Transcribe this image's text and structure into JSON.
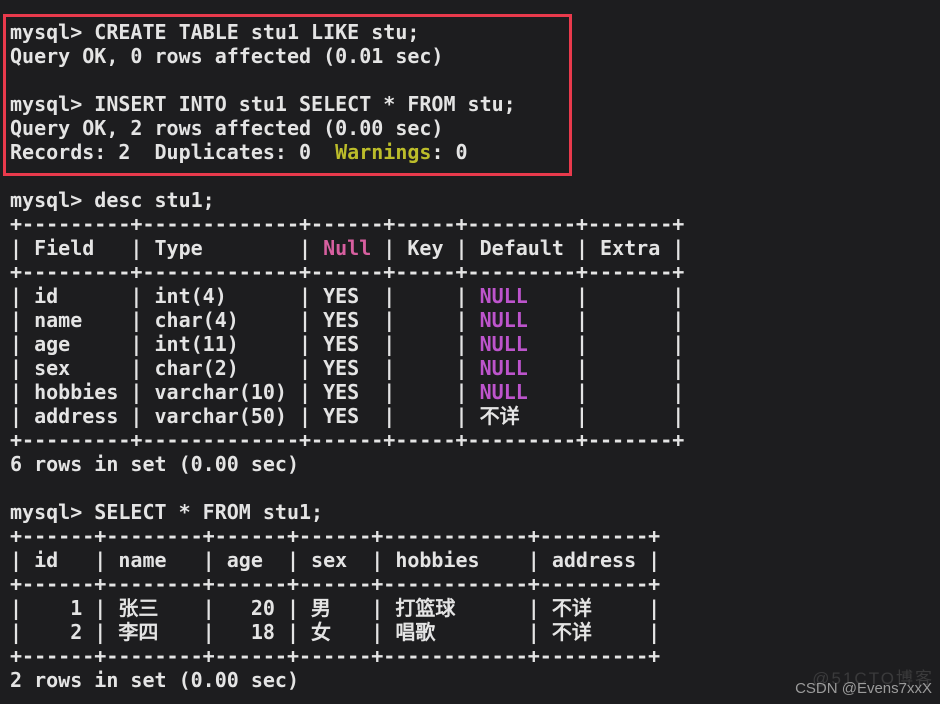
{
  "colors": {
    "background": "#1d1d1f",
    "foreground": "#e4e4e4",
    "yellow_warning": "#bcbd2a",
    "pink_null_header": "#d75f9f",
    "magenta_null_value": "#bd54cc",
    "annotation_box_red": "#e93a4c",
    "watermark_gray": "#9b9b9b"
  },
  "statements": [
    {
      "prompt": "mysql>",
      "command": "CREATE TABLE stu1 LIKE stu;",
      "result": "Query OK, 0 rows affected (0.01 sec)"
    },
    {
      "prompt": "mysql>",
      "command": "INSERT INTO stu1 SELECT * FROM stu;",
      "result": "Query OK, 2 rows affected (0.00 sec)",
      "detail": "Records: 2  Duplicates: 0  Warnings: 0"
    },
    {
      "prompt": "mysql>",
      "command": "desc stu1;",
      "result": "6 rows in set (0.00 sec)"
    },
    {
      "prompt": "mysql>",
      "command": "SELECT * FROM stu1;",
      "result": "2 rows in set (0.00 sec)"
    }
  ],
  "tables": [
    {
      "source_command": "desc stu1;",
      "headers": [
        "Field",
        "Type",
        "Null",
        "Key",
        "Default",
        "Extra"
      ],
      "rows": [
        [
          "id",
          "int(4)",
          "YES",
          "",
          "NULL",
          ""
        ],
        [
          "name",
          "char(4)",
          "YES",
          "",
          "NULL",
          ""
        ],
        [
          "age",
          "int(11)",
          "YES",
          "",
          "NULL",
          ""
        ],
        [
          "sex",
          "char(2)",
          "YES",
          "",
          "NULL",
          ""
        ],
        [
          "hobbies",
          "varchar(10)",
          "YES",
          "",
          "NULL",
          ""
        ],
        [
          "address",
          "varchar(50)",
          "YES",
          "",
          "不详",
          ""
        ]
      ],
      "footer": "6 rows in set (0.00 sec)"
    },
    {
      "source_command": "SELECT * FROM stu1;",
      "headers": [
        "id",
        "name",
        "age",
        "sex",
        "hobbies",
        "address"
      ],
      "rows": [
        [
          "1",
          "张三",
          "20",
          "男",
          "打篮球",
          "不详"
        ],
        [
          "2",
          "李四",
          "18",
          "女",
          "唱歌",
          "不详"
        ]
      ],
      "footer": "2 rows in set (0.00 sec)"
    }
  ],
  "terminal": {
    "lines": [
      {
        "s": [
          {
            "t": "mysql> CREATE TABLE stu1 LIKE stu;"
          }
        ]
      },
      {
        "s": [
          {
            "t": "Query OK, 0 rows affected (0.01 sec)"
          }
        ]
      },
      {
        "s": []
      },
      {
        "s": [
          {
            "t": "mysql> INSERT INTO stu1 SELECT * FROM stu;"
          }
        ]
      },
      {
        "s": [
          {
            "t": "Query OK, 2 rows affected (0.00 sec)"
          }
        ]
      },
      {
        "s": [
          {
            "t": "Records: 2  Duplicates: 0  "
          },
          {
            "t": "Warnings",
            "c": "yellow_warning"
          },
          {
            "t": ": 0"
          }
        ]
      },
      {
        "s": []
      },
      {
        "s": [
          {
            "t": "mysql> desc stu1;"
          }
        ]
      },
      {
        "s": [
          {
            "t": "+---------+-------------+------+-----+---------+-------+"
          }
        ]
      },
      {
        "s": [
          {
            "t": "| Field   | Type        | "
          },
          {
            "t": "Null",
            "c": "pink_null_header"
          },
          {
            "t": " | Key | Default | Extra |"
          }
        ]
      },
      {
        "s": [
          {
            "t": "+---------+-------------+------+-----+---------+-------+"
          }
        ]
      },
      {
        "s": [
          {
            "t": "| id      | int(4)      | YES  |     | "
          },
          {
            "t": "NULL",
            "c": "magenta_null_value"
          },
          {
            "t": "    |       |"
          }
        ]
      },
      {
        "s": [
          {
            "t": "| name    | char(4)     | YES  |     | "
          },
          {
            "t": "NULL",
            "c": "magenta_null_value"
          },
          {
            "t": "    |       |"
          }
        ]
      },
      {
        "s": [
          {
            "t": "| age     | int(11)     | YES  |     | "
          },
          {
            "t": "NULL",
            "c": "magenta_null_value"
          },
          {
            "t": "    |       |"
          }
        ]
      },
      {
        "s": [
          {
            "t": "| sex     | char(2)     | YES  |     | "
          },
          {
            "t": "NULL",
            "c": "magenta_null_value"
          },
          {
            "t": "    |       |"
          }
        ]
      },
      {
        "s": [
          {
            "t": "| hobbies | varchar(10) | YES  |     | "
          },
          {
            "t": "NULL",
            "c": "magenta_null_value"
          },
          {
            "t": "    |       |"
          }
        ]
      },
      {
        "s": [
          {
            "t": "| address | varchar(50) | YES  |     | "
          },
          {
            "t": "不详",
            "w": 1
          },
          {
            "t": "    |       |"
          }
        ]
      },
      {
        "s": [
          {
            "t": "+---------+-------------+------+-----+---------+-------+"
          }
        ]
      },
      {
        "s": [
          {
            "t": "6 rows in set (0.00 sec)"
          }
        ]
      },
      {
        "s": []
      },
      {
        "s": [
          {
            "t": "mysql> SELECT * FROM stu1;"
          }
        ]
      },
      {
        "s": [
          {
            "t": "+------+--------+------+------+------------+---------+"
          }
        ]
      },
      {
        "s": [
          {
            "t": "| id   | name   | age  | sex  | hobbies    | address |"
          }
        ]
      },
      {
        "s": [
          {
            "t": "+------+--------+------+------+------------+---------+"
          }
        ]
      },
      {
        "s": [
          {
            "t": "|    1 | "
          },
          {
            "t": "张三",
            "w": 1
          },
          {
            "t": "   |   20 | "
          },
          {
            "t": "男",
            "w": 1
          },
          {
            "t": "   | "
          },
          {
            "t": "打篮球",
            "w": 1
          },
          {
            "t": "     | "
          },
          {
            "t": "不详",
            "w": 1
          },
          {
            "t": "    |"
          }
        ]
      },
      {
        "s": [
          {
            "t": "|    2 | "
          },
          {
            "t": "李四",
            "w": 1
          },
          {
            "t": "   |   18 | "
          },
          {
            "t": "女",
            "w": 1
          },
          {
            "t": "   | "
          },
          {
            "t": "唱歌",
            "w": 1
          },
          {
            "t": "       | "
          },
          {
            "t": "不详",
            "w": 1
          },
          {
            "t": "    |"
          }
        ]
      },
      {
        "s": [
          {
            "t": "+------+--------+------+------+------------+---------+"
          }
        ]
      },
      {
        "s": [
          {
            "t": "2 rows in set (0.00 sec)"
          }
        ]
      }
    ]
  },
  "watermark": {
    "text": "CSDN @Evens7xxX",
    "ghost": "@51CTO博客"
  }
}
